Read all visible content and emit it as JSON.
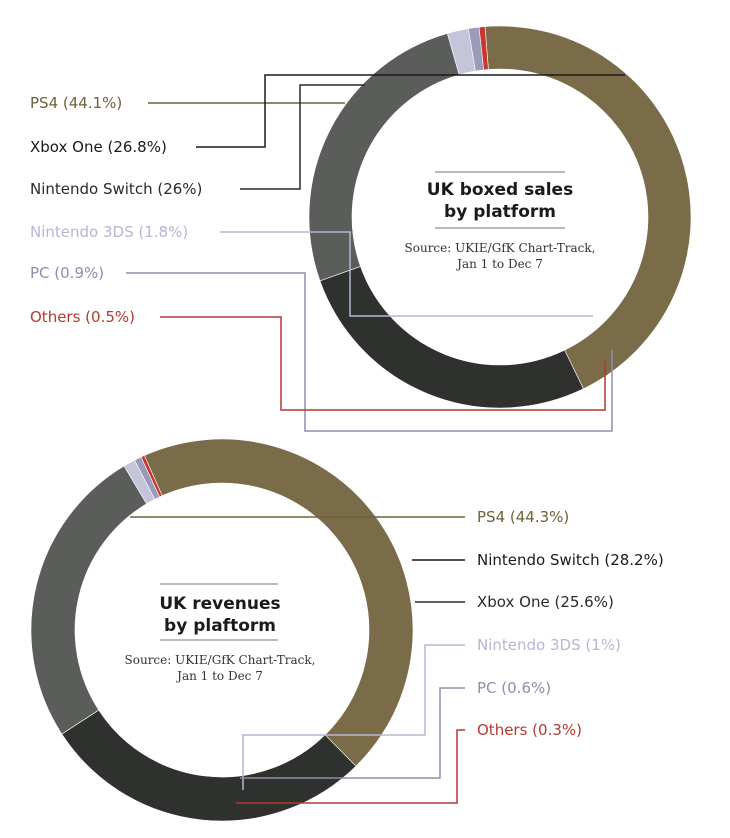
{
  "chart_data": [
    {
      "type": "pie",
      "title": "UK boxed sales by platform",
      "title_lines": [
        "UK boxed sales",
        "by platform"
      ],
      "source_lines": [
        "Source: UKIE/GfK Chart-Track,",
        "Jan 1 to Dec 7"
      ],
      "categories": [
        "PS4",
        "Xbox One",
        "Nintendo Switch",
        "Nintendo 3DS",
        "PC",
        "Others"
      ],
      "values": [
        44.1,
        26.8,
        26,
        1.8,
        0.9,
        0.5
      ],
      "labels": [
        "PS4 (44.1%)",
        "Xbox One (26.8%)",
        "Nintendo Switch (26%)",
        "Nintendo 3DS (1.8%)",
        "PC (0.9%)",
        "Others (0.5%)"
      ],
      "colors": [
        "#7a6c48",
        "#2f312e",
        "#5b5d5a",
        "#c4c5da",
        "#9b9ab8",
        "#c8362f"
      ],
      "label_colors": [
        "#6e6138",
        "#1a1a1a",
        "#2a2a2a",
        "#b5b7d2",
        "#8f8eae",
        "#b43a2e"
      ]
    },
    {
      "type": "pie",
      "title": "UK revenues by plaftorm",
      "title_lines": [
        "UK revenues",
        "by plaftorm"
      ],
      "source_lines": [
        "Source: UKIE/GfK Chart-Track,",
        "Jan 1 to Dec 7"
      ],
      "categories": [
        "PS4",
        "Nintendo Switch",
        "Xbox One",
        "Nintendo 3DS",
        "PC",
        "Others"
      ],
      "values": [
        44.3,
        28.2,
        25.6,
        1,
        0.6,
        0.3
      ],
      "labels": [
        "PS4 (44.3%)",
        "Nintendo Switch (28.2%)",
        "Xbox One (25.6%)",
        "Nintendo 3DS (1%)",
        "PC (0.6%)",
        "Others (0.3%)"
      ],
      "colors": [
        "#7a6c48",
        "#2f312e",
        "#5b5d5a",
        "#c4c5da",
        "#9b9ab8",
        "#c8362f"
      ],
      "label_colors": [
        "#6e6138",
        "#1a1a1a",
        "#2a2a2a",
        "#b5b7d2",
        "#8f8eae",
        "#b43a2e"
      ]
    }
  ]
}
